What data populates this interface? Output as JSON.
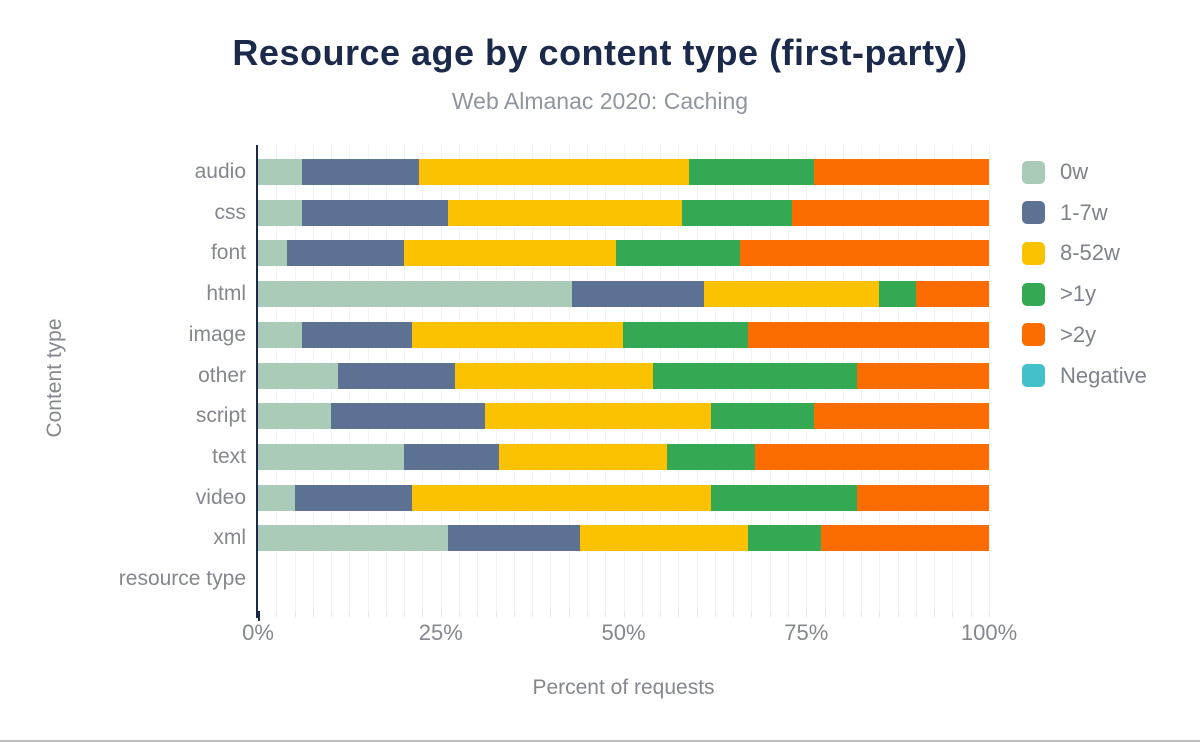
{
  "title": "Resource age by content type (first-party)",
  "subtitle": "Web Almanac 2020: Caching",
  "colors": {
    "title_text": "#1b2a4a",
    "subtitle_text": "#8f959e",
    "axis_text": "#85878f",
    "axis_line": "#1b2a4a",
    "gridline": "#f2f3f5",
    "background": "#ffffff"
  },
  "chart_data": {
    "type": "bar",
    "stacked": true,
    "orientation": "horizontal",
    "title": "Resource age by content type (first-party)",
    "subtitle": "Web Almanac 2020: Caching",
    "xlabel": "Percent of requests",
    "ylabel": "Content type",
    "xlim": [
      0,
      100
    ],
    "xticks": [
      {
        "value": 0,
        "label": "0%"
      },
      {
        "value": 25,
        "label": "25%"
      },
      {
        "value": 50,
        "label": "50%"
      },
      {
        "value": 75,
        "label": "75%"
      },
      {
        "value": 100,
        "label": "100%"
      }
    ],
    "minor_grid_step_percent": 2.5,
    "grid": "minor vertical gridlines on",
    "legend_position": "right",
    "categories": [
      "audio",
      "css",
      "font",
      "html",
      "image",
      "other",
      "script",
      "text",
      "video",
      "xml",
      "resource type"
    ],
    "series": [
      {
        "name": "0w",
        "color": "#a9cbb7",
        "values": [
          6,
          6,
          4,
          43,
          6,
          11,
          10,
          20,
          5,
          26,
          0
        ]
      },
      {
        "name": "1-7w",
        "color": "#5d7293",
        "values": [
          16,
          20,
          16,
          18,
          15,
          16,
          21,
          13,
          16,
          18,
          0
        ]
      },
      {
        "name": "8-52w",
        "color": "#fac201",
        "values": [
          37,
          32,
          29,
          24,
          29,
          27,
          31,
          23,
          41,
          23,
          0
        ]
      },
      {
        "name": ">1y",
        "color": "#34a853",
        "values": [
          17,
          15,
          17,
          5,
          17,
          28,
          14,
          12,
          20,
          10,
          0
        ]
      },
      {
        "name": ">2y",
        "color": "#fb6d00",
        "values": [
          24,
          27,
          34,
          10,
          33,
          18,
          24,
          32,
          18,
          23,
          0
        ]
      },
      {
        "name": "Negative",
        "color": "#43c1ca",
        "values": [
          0,
          0,
          0,
          0,
          0,
          0,
          0,
          0,
          0,
          0,
          0
        ]
      }
    ]
  }
}
